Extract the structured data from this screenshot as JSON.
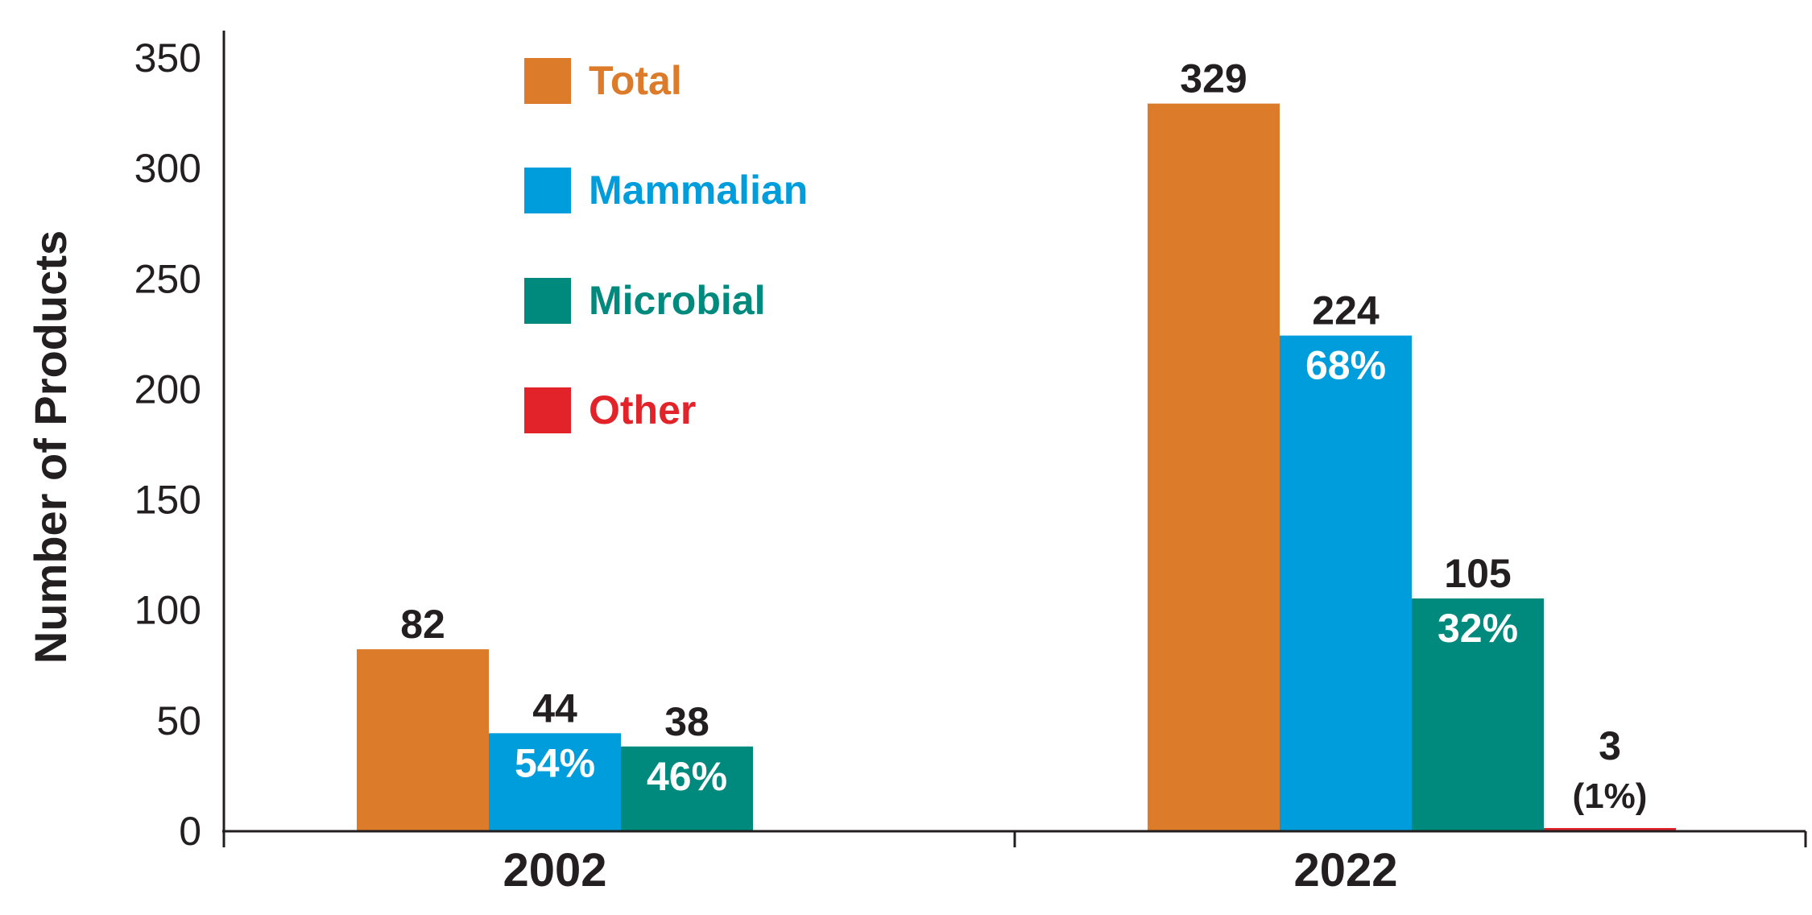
{
  "chart_data": {
    "type": "bar",
    "ylabel": "Number of Products",
    "ylim": [
      0,
      350
    ],
    "yticks": [
      0,
      50,
      100,
      150,
      200,
      250,
      300,
      350
    ],
    "categories": [
      "2002",
      "2022"
    ],
    "grid": false,
    "legend_position": "top-left",
    "series": [
      {
        "name": "Total",
        "color": "#dc7b2a",
        "values": [
          82,
          329
        ],
        "labels": [
          "82",
          "329"
        ],
        "pct_labels": [
          "",
          ""
        ]
      },
      {
        "name": "Mammalian",
        "color": "#009ddc",
        "values": [
          44,
          224
        ],
        "labels": [
          "44",
          "224"
        ],
        "pct_labels": [
          "54%",
          "68%"
        ]
      },
      {
        "name": "Microbial",
        "color": "#008a7e",
        "values": [
          38,
          105
        ],
        "labels": [
          "38",
          "105"
        ],
        "pct_labels": [
          "46%",
          "32%"
        ]
      },
      {
        "name": "Other",
        "color": "#e2232a",
        "values": [
          null,
          3
        ],
        "labels": [
          "",
          "3"
        ],
        "pct_labels": [
          "",
          "(1%)"
        ]
      }
    ]
  }
}
